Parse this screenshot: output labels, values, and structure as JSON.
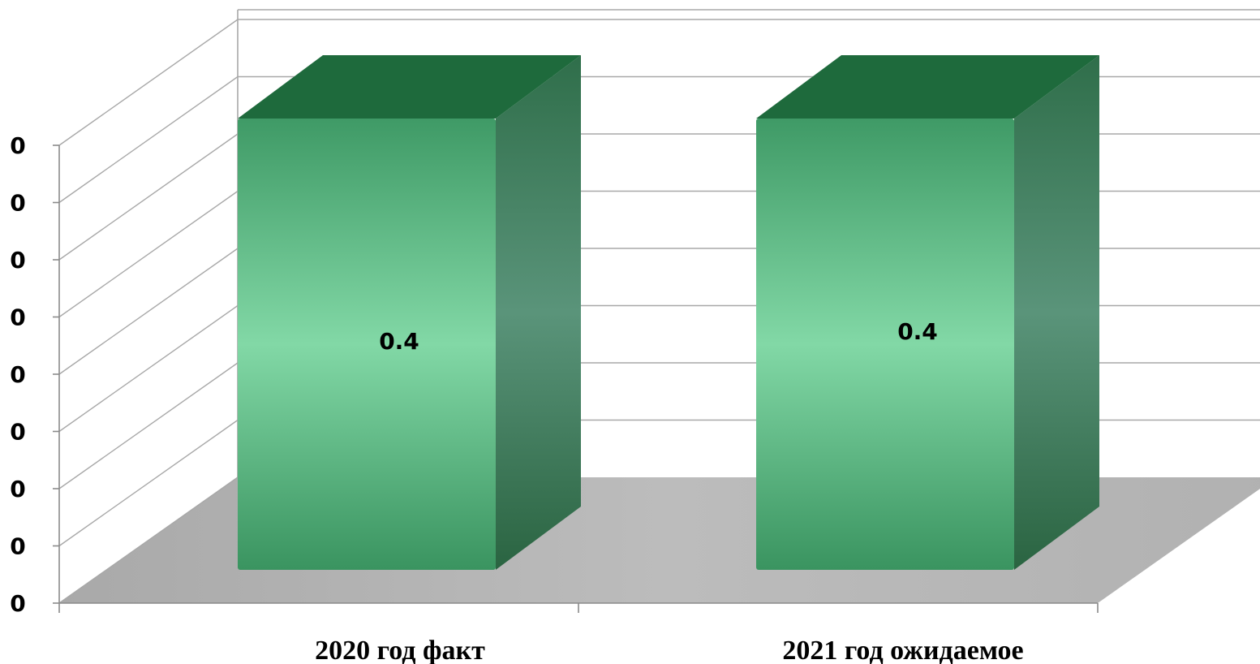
{
  "chart_data": {
    "type": "bar",
    "style": "3d-column",
    "categories": [
      "2020 год факт",
      "2021 год ожидаемое"
    ],
    "series": [
      {
        "values": [
          0.4,
          0.4
        ]
      }
    ],
    "data_labels": [
      "0.4",
      "0.4"
    ],
    "y_tick_labels": [
      "0",
      "0",
      "0",
      "0",
      "0",
      "0",
      "0",
      "0",
      "0"
    ],
    "ylim": [
      0,
      0.45
    ],
    "grid": true,
    "legend": "none",
    "colors": {
      "bar_front": "#5fb88a",
      "bar_top": "#1e6a3c",
      "bar_side": "#3a7d57",
      "floor": "#b5b5b5",
      "gridline": "#a8a8a8"
    }
  }
}
